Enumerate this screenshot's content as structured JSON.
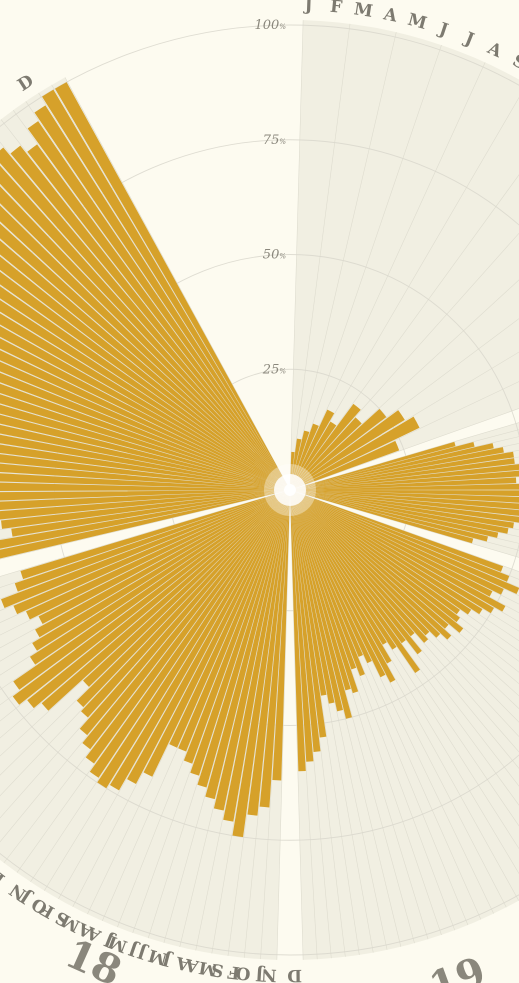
{
  "chart_data": {
    "type": "bar",
    "subtype": "radial",
    "ylim": [
      0,
      100
    ],
    "y_ticks": [
      25,
      50,
      75,
      100
    ],
    "y_unit": "%",
    "month_labels": [
      "J",
      "F",
      "M",
      "A",
      "M",
      "J",
      "J",
      "A",
      "S",
      "O",
      "N",
      "D"
    ],
    "year_labels": [
      "18",
      "19"
    ],
    "colors": {
      "bar": "#d6a12a",
      "background": "#fdfbf0",
      "sector": "#f1efe2",
      "grid": "#d9d7cc"
    },
    "series": [
      {
        "name": "",
        "start_angle_deg": 0,
        "end_angle_deg": 72,
        "values": [
          7,
          10,
          12,
          14,
          18,
          16,
          22,
          20,
          25,
          28,
          30,
          24
        ]
      },
      {
        "name": "",
        "start_angle_deg": 72,
        "end_angle_deg": 108,
        "values": [
          36,
          40,
          44,
          46,
          48,
          48,
          52,
          57,
          48,
          52,
          57,
          54,
          51,
          53,
          52,
          48,
          47,
          45,
          43,
          40
        ]
      },
      {
        "name": "",
        "start_angle_deg": 108,
        "end_angle_deg": 180,
        "values": [
          48,
          50,
          53,
          50,
          48,
          52,
          50,
          48,
          46,
          44,
          45,
          47,
          44,
          46,
          44,
          42,
          43,
          40,
          44,
          40,
          47,
          40,
          38,
          42,
          46,
          44,
          40,
          38,
          42,
          40,
          45,
          44,
          50,
          48,
          46,
          44,
          53,
          56,
          58,
          60
        ]
      },
      {
        "name": "",
        "start_angle_deg": 180,
        "end_angle_deg": 255,
        "values": [
          62,
          68,
          70,
          75,
          72,
          70,
          68,
          66,
          64,
          62,
          60,
          60,
          68,
          71,
          74,
          75,
          74,
          72,
          70,
          68,
          65,
          64,
          60,
          70,
          72,
          74,
          72,
          66,
          64,
          62,
          60,
          62,
          64,
          66,
          62,
          60
        ]
      },
      {
        "name": "",
        "start_angle_deg": 255,
        "end_angle_deg": 333,
        "values": [
          64,
          66,
          60,
          62,
          70,
          72,
          74,
          70,
          76,
          80,
          84,
          86,
          88,
          90,
          92,
          94,
          96,
          94,
          92,
          90,
          88,
          86,
          84,
          82,
          80,
          82,
          86,
          88,
          90,
          92,
          94,
          96,
          98,
          96,
          94,
          92,
          96,
          98,
          100,
          100
        ]
      }
    ]
  }
}
